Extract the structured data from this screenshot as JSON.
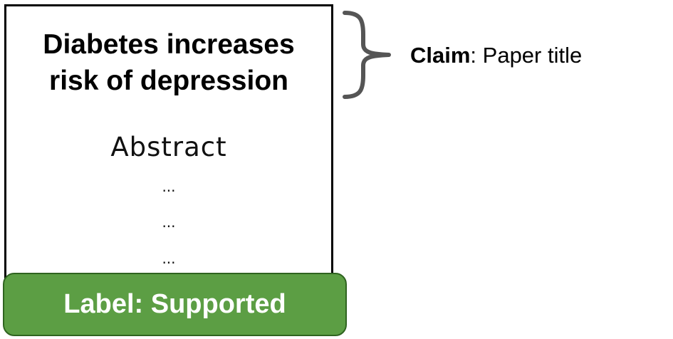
{
  "paper": {
    "title": "Diabetes increases\nrisk of depression",
    "abstract_heading": "Abstract",
    "ellipses": [
      "...",
      "...",
      "..."
    ]
  },
  "label": {
    "text": "Label: Supported",
    "color": "#5c9e44"
  },
  "claim": {
    "key": "Claim",
    "value": ": Paper title"
  },
  "brace": {
    "icon": "curly-brace-icon",
    "color": "#555555"
  }
}
